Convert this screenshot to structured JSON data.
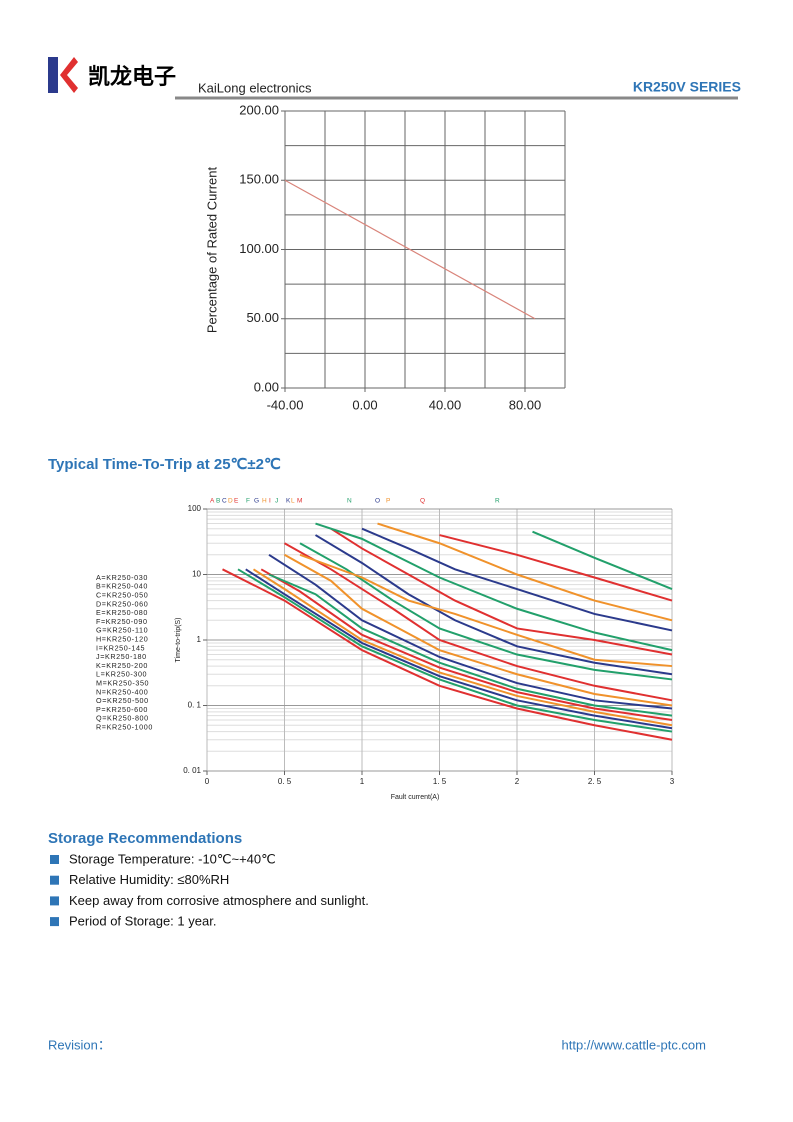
{
  "header": {
    "brand_cn": "凯龙电子",
    "brand_en": "KaiLong electronics",
    "series": "KR250V SERIES"
  },
  "sections": {
    "time_to_trip": "Typical Time-To-Trip at 25℃±2℃",
    "storage": "Storage Recommendations"
  },
  "storage_items": [
    "Storage Temperature: -10℃~+40℃",
    "Relative Humidity: ≤80%RH",
    "Keep away from corrosive atmosphere and sunlight.",
    "Period of Storage: 1 year."
  ],
  "footer": {
    "revision": "Revision：",
    "url": "http://www.cattle-ptc.com"
  },
  "chart_data": [
    {
      "type": "line",
      "ylabel": "Percentage of Rated Current",
      "x": [
        -40,
        85
      ],
      "values": [
        150,
        50
      ],
      "color": "#d9847a",
      "xlim": [
        -40,
        100
      ],
      "ylim": [
        0,
        200
      ],
      "xticks": [
        {
          "value": -40,
          "label": "-40.00"
        },
        {
          "value": 0,
          "label": "0.00"
        },
        {
          "value": 40,
          "label": "40.00"
        },
        {
          "value": 80,
          "label": "80.00"
        }
      ],
      "yticks": [
        {
          "value": 0,
          "label": "0.00"
        },
        {
          "value": 50,
          "label": "50.00"
        },
        {
          "value": 100,
          "label": "100.00"
        },
        {
          "value": 150,
          "label": "150.00"
        },
        {
          "value": 200,
          "label": "200.00"
        }
      ],
      "xgrid": [
        -40,
        -20,
        0,
        20,
        40,
        60,
        80,
        100
      ],
      "ygrid": [
        0,
        25,
        50,
        75,
        100,
        125,
        150,
        175,
        200
      ],
      "grid": true
    },
    {
      "type": "line",
      "ylog": true,
      "xlabel": "Fault current(A)",
      "ylabel": "Time-to-trip(S)",
      "xlim": [
        0,
        3
      ],
      "ylim": [
        0.01,
        100
      ],
      "xticks": [
        0,
        {
          "value": 0.5,
          "label": "0. 5"
        },
        1,
        {
          "value": 1.5,
          "label": "1. 5"
        },
        2,
        {
          "value": 2.5,
          "label": "2. 5"
        },
        3
      ],
      "yticks": [
        {
          "value": 0.01,
          "label": "0. 01"
        },
        {
          "value": 0.1,
          "label": "0. 1"
        },
        1,
        10,
        100
      ],
      "grid": true,
      "series": [
        {
          "name": "A=KR250-030",
          "tag": "A",
          "color": "#e03030",
          "x": [
            0.1,
            0.5,
            1,
            1.5,
            2,
            2.5,
            3
          ],
          "values": [
            12,
            4,
            0.7,
            0.2,
            0.09,
            0.05,
            0.03
          ]
        },
        {
          "name": "B=KR250-040",
          "tag": "B",
          "color": "#22a06b",
          "x": [
            0.2,
            0.5,
            1,
            1.5,
            2,
            2.5,
            3
          ],
          "values": [
            12,
            4.5,
            0.8,
            0.25,
            0.1,
            0.06,
            0.04
          ]
        },
        {
          "name": "C=KR250-050",
          "tag": "C",
          "color": "#2b3a8c",
          "x": [
            0.25,
            0.5,
            1,
            1.5,
            2,
            2.5,
            3
          ],
          "values": [
            12,
            5,
            0.9,
            0.28,
            0.12,
            0.07,
            0.045
          ]
        },
        {
          "name": "D=KR250-060",
          "tag": "D",
          "color": "#f0922b",
          "x": [
            0.3,
            0.5,
            1,
            1.5,
            2,
            2.5,
            3
          ],
          "values": [
            12,
            6,
            1,
            0.32,
            0.14,
            0.08,
            0.05
          ]
        },
        {
          "name": "E=KR250-080",
          "tag": "E",
          "color": "#e03030",
          "x": [
            0.35,
            0.6,
            1,
            1.5,
            2,
            2.5,
            3
          ],
          "values": [
            12,
            5.5,
            1.2,
            0.38,
            0.16,
            0.09,
            0.06
          ]
        },
        {
          "name": "F=KR250-090",
          "tag": "F",
          "color": "#22a06b",
          "x": [
            0.4,
            0.7,
            1,
            1.5,
            2,
            2.5,
            3
          ],
          "values": [
            10,
            5,
            1.5,
            0.45,
            0.18,
            0.1,
            0.07
          ]
        },
        {
          "name": "G=KR250-110",
          "tag": "G",
          "color": "#2b3a8c",
          "x": [
            0.4,
            0.7,
            1,
            1.5,
            2,
            2.5,
            3
          ],
          "values": [
            20,
            7,
            2,
            0.55,
            0.22,
            0.12,
            0.09
          ]
        },
        {
          "name": "H=KR250-120",
          "tag": "H",
          "color": "#f0922b",
          "x": [
            0.5,
            0.8,
            1,
            1.5,
            2,
            2.5,
            3
          ],
          "values": [
            20,
            8,
            3,
            0.7,
            0.3,
            0.15,
            0.1
          ]
        },
        {
          "name": "I=KR250-145",
          "tag": "I",
          "color": "#e03030",
          "x": [
            0.5,
            0.8,
            1.2,
            1.5,
            2,
            2.5,
            3
          ],
          "values": [
            30,
            12,
            3,
            1,
            0.4,
            0.2,
            0.12
          ]
        },
        {
          "name": "J=KR250-180",
          "tag": "J",
          "color": "#22a06b",
          "x": [
            0.6,
            0.9,
            1.2,
            1.5,
            2,
            2.5,
            3
          ],
          "values": [
            30,
            12,
            4,
            1.5,
            0.6,
            0.35,
            0.25
          ]
        },
        {
          "name": "K=KR250-200",
          "tag": "K",
          "color": "#2b3a8c",
          "x": [
            0.7,
            1,
            1.3,
            1.6,
            2,
            2.5,
            3
          ],
          "values": [
            40,
            15,
            5,
            2,
            0.8,
            0.45,
            0.3
          ]
        },
        {
          "name": "L=KR250-300",
          "tag": "L",
          "color": "#f0922b",
          "x": [
            0.6,
            1,
            1.3,
            1.6,
            2,
            2.5,
            3
          ],
          "values": [
            20,
            9,
            4,
            2.5,
            1.2,
            0.5,
            0.4
          ]
        },
        {
          "name": "M=KR250-350",
          "tag": "M",
          "color": "#e03030",
          "x": [
            0.8,
            1,
            1.3,
            1.6,
            2,
            2.5,
            3
          ],
          "values": [
            50,
            25,
            10,
            4,
            1.5,
            1,
            0.6
          ]
        },
        {
          "name": "N=KR250-400",
          "tag": "N",
          "color": "#22a06b",
          "x": [
            0.7,
            1,
            1.5,
            2,
            2.5,
            3
          ],
          "values": [
            60,
            35,
            9,
            3,
            1.3,
            0.7
          ]
        },
        {
          "name": "O=KR250-500",
          "tag": "O",
          "color": "#2b3a8c",
          "x": [
            1,
            1.3,
            1.6,
            2,
            2.5,
            3
          ],
          "values": [
            50,
            25,
            12,
            6,
            2.5,
            1.4
          ]
        },
        {
          "name": "P=KR250-600",
          "tag": "P",
          "color": "#f0922b",
          "x": [
            1.1,
            1.5,
            2,
            2.5,
            3
          ],
          "values": [
            60,
            30,
            10,
            4,
            2
          ]
        },
        {
          "name": "Q=KR250-800",
          "tag": "Q",
          "color": "#e03030",
          "x": [
            1.5,
            2,
            2.5,
            3
          ],
          "values": [
            40,
            20,
            9,
            4
          ]
        },
        {
          "name": "R=KR250-1000",
          "tag": "R",
          "color": "#22a06b",
          "x": [
            2.1,
            2.5,
            3
          ],
          "values": [
            45,
            18,
            6
          ]
        }
      ]
    }
  ]
}
